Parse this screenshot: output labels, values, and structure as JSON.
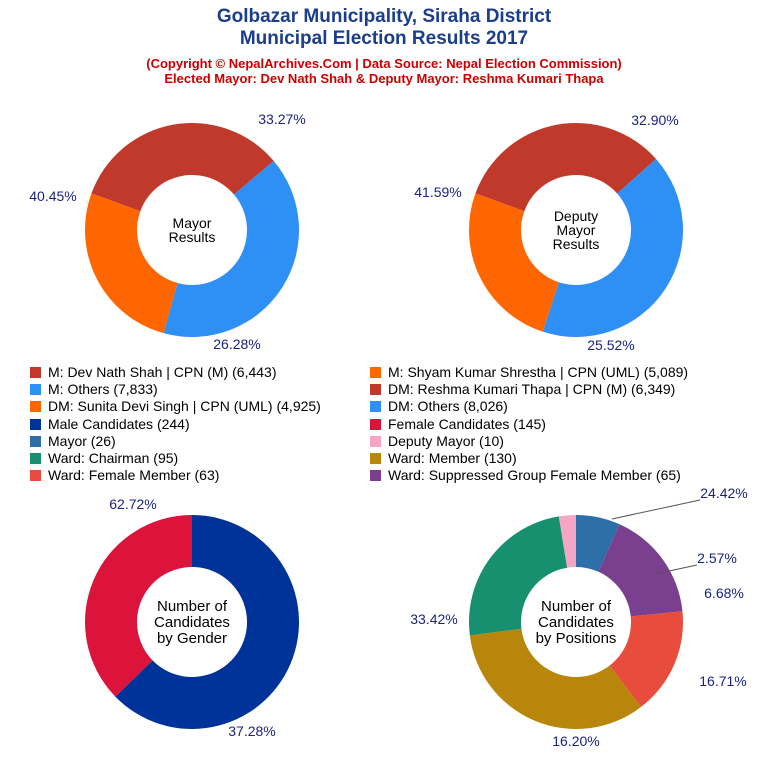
{
  "header": {
    "title_line1": "Golbazar Municipality, Siraha District",
    "title_line2": "Municipal Election Results 2017",
    "subtitle_line1": "(Copyright © NepalArchives.Com | Data Source: Nepal Election Commission)",
    "subtitle_line2": "Elected Mayor: Dev Nath Shah & Deputy Mayor: Reshma Kumari Thapa"
  },
  "colors": {
    "title": "#1a3e8c",
    "subtitle": "#cc0000",
    "pct_label": "#1a237e"
  },
  "legend": {
    "left": [
      {
        "label": "M: Dev Nath Shah | CPN (M) (6,443)",
        "color": "#c0392b"
      },
      {
        "label": "M: Others (7,833)",
        "color": "#2e8ff5"
      },
      {
        "label": "DM: Sunita Devi Singh | CPN (UML) (4,925)",
        "color": "#ff6600"
      },
      {
        "label": "Male Candidates (244)",
        "color": "#003399"
      },
      {
        "label": "Mayor (26)",
        "color": "#2e6fa8"
      },
      {
        "label": "Ward: Chairman (95)",
        "color": "#17906f"
      },
      {
        "label": "Ward: Female Member (63)",
        "color": "#e74c3c"
      }
    ],
    "right": [
      {
        "label": "M: Shyam Kumar Shrestha | CPN (UML) (5,089)",
        "color": "#ff6600"
      },
      {
        "label": "DM: Reshma Kumari Thapa | CPN (M) (6,349)",
        "color": "#c0392b"
      },
      {
        "label": "DM: Others (8,026)",
        "color": "#2e8ff5"
      },
      {
        "label": "Female Candidates (145)",
        "color": "#dc143c"
      },
      {
        "label": "Deputy Mayor (10)",
        "color": "#f4a6c4"
      },
      {
        "label": "Ward: Member (130)",
        "color": "#b8860b"
      },
      {
        "label": "Ward: Suppressed Group Female Member (65)",
        "color": "#7b3f8f"
      }
    ]
  },
  "chart_data": [
    {
      "type": "pie",
      "title": "Mayor Results",
      "center_label": [
        "Mayor",
        "Results"
      ],
      "slices": [
        {
          "name": "M: Dev Nath Shah | CPN (M)",
          "value": 6443,
          "pct_label": "33.27%",
          "color": "#c0392b"
        },
        {
          "name": "M: Others",
          "value": 7833,
          "pct_label": "40.45%",
          "color": "#2e8ff5"
        },
        {
          "name": "M: Shyam Kumar Shrestha | CPN (UML)",
          "value": 5089,
          "pct_label": "26.28%",
          "color": "#ff6600"
        }
      ]
    },
    {
      "type": "pie",
      "title": "Deputy Mayor Results",
      "center_label": [
        "Deputy",
        "Mayor",
        "Results"
      ],
      "slices": [
        {
          "name": "DM: Reshma Kumari Thapa | CPN (M)",
          "value": 6349,
          "pct_label": "32.90%",
          "color": "#c0392b"
        },
        {
          "name": "DM: Others",
          "value": 8026,
          "pct_label": "41.59%",
          "color": "#2e8ff5"
        },
        {
          "name": "DM: Sunita Devi Singh | CPN (UML)",
          "value": 4925,
          "pct_label": "25.52%",
          "color": "#ff6600"
        }
      ]
    },
    {
      "type": "pie",
      "title": "Number of Candidates by Gender",
      "center_label": [
        "Number of",
        "Candidates",
        "by Gender"
      ],
      "slices": [
        {
          "name": "Male Candidates",
          "value": 244,
          "pct_label": "62.72%",
          "color": "#003399"
        },
        {
          "name": "Female Candidates",
          "value": 145,
          "pct_label": "37.28%",
          "color": "#dc143c"
        }
      ]
    },
    {
      "type": "pie",
      "title": "Number of Candidates by Positions",
      "center_label": [
        "Number of",
        "Candidates",
        "by Positions"
      ],
      "slices": [
        {
          "name": "Mayor",
          "value": 26,
          "pct_label": "6.68%",
          "color": "#2e6fa8"
        },
        {
          "name": "Ward: Suppressed Group Female Member",
          "value": 65,
          "pct_label": "16.71%",
          "color": "#7b3f8f"
        },
        {
          "name": "Ward: Female Member",
          "value": 63,
          "pct_label": "16.20%",
          "color": "#e74c3c"
        },
        {
          "name": "Ward: Member",
          "value": 130,
          "pct_label": "33.42%",
          "color": "#b8860b"
        },
        {
          "name": "Ward: Chairman",
          "value": 95,
          "pct_label": "24.42%",
          "color": "#17906f"
        },
        {
          "name": "Deputy Mayor",
          "value": 10,
          "pct_label": "2.57%",
          "color": "#f4a6c4"
        }
      ]
    }
  ]
}
